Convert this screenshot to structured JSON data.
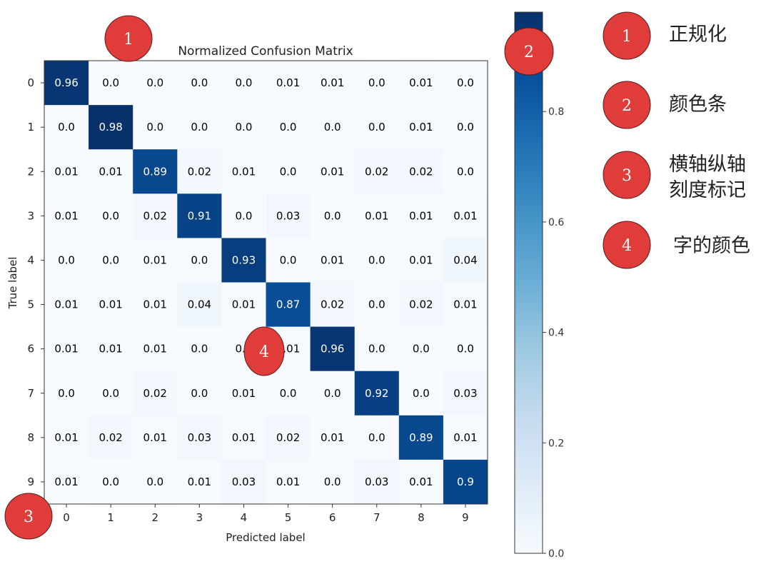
{
  "chart_data": {
    "type": "heatmap",
    "title": "Normalized Confusion Matrix",
    "xlabel": "Predicted label",
    "ylabel": "True label",
    "x_ticks": [
      "0",
      "1",
      "2",
      "3",
      "4",
      "5",
      "6",
      "7",
      "8",
      "9"
    ],
    "y_ticks": [
      "0",
      "1",
      "2",
      "3",
      "4",
      "5",
      "6",
      "7",
      "8",
      "9"
    ],
    "colormap": "Blues",
    "colorbar": {
      "range": [
        0.0,
        0.98
      ],
      "ticks": [
        "0.0",
        "0.2",
        "0.4",
        "0.6",
        "0.8"
      ]
    },
    "text_color_light": "#ffffff",
    "text_color_dark": "#000000",
    "matrix": [
      [
        "0.96",
        "0.0",
        "0.0",
        "0.0",
        "0.0",
        "0.01",
        "0.01",
        "0.0",
        "0.01",
        "0.0"
      ],
      [
        "0.0",
        "0.98",
        "0.0",
        "0.0",
        "0.0",
        "0.0",
        "0.0",
        "0.0",
        "0.01",
        "0.0"
      ],
      [
        "0.01",
        "0.01",
        "0.89",
        "0.02",
        "0.01",
        "0.0",
        "0.01",
        "0.02",
        "0.02",
        "0.0"
      ],
      [
        "0.01",
        "0.0",
        "0.02",
        "0.91",
        "0.0",
        "0.03",
        "0.0",
        "0.01",
        "0.01",
        "0.01"
      ],
      [
        "0.0",
        "0.0",
        "0.01",
        "0.0",
        "0.93",
        "0.0",
        "0.01",
        "0.0",
        "0.01",
        "0.04"
      ],
      [
        "0.01",
        "0.01",
        "0.01",
        "0.04",
        "0.01",
        "0.87",
        "0.02",
        "0.0",
        "0.02",
        "0.01"
      ],
      [
        "0.01",
        "0.01",
        "0.01",
        "0.0",
        "0.0",
        "0.01",
        "0.96",
        "0.0",
        "0.0",
        "0.0"
      ],
      [
        "0.0",
        "0.0",
        "0.02",
        "0.0",
        "0.01",
        "0.0",
        "0.0",
        "0.92",
        "0.0",
        "0.03"
      ],
      [
        "0.01",
        "0.02",
        "0.01",
        "0.03",
        "0.01",
        "0.02",
        "0.01",
        "0.0",
        "0.89",
        "0.01"
      ],
      [
        "0.01",
        "0.0",
        "0.0",
        "0.01",
        "0.03",
        "0.01",
        "0.0",
        "0.03",
        "0.01",
        "0.9"
      ]
    ]
  },
  "annotations": {
    "marker_color": "#e03c3a",
    "markers": [
      "1",
      "2",
      "3",
      "4"
    ],
    "legend": [
      {
        "number": "1",
        "text": "正规化"
      },
      {
        "number": "2",
        "text": "颜色条"
      },
      {
        "number": "3",
        "text_line1": "横轴纵轴",
        "text_line2": "刻度标记"
      },
      {
        "number": "4",
        "text": "字的颜色"
      }
    ]
  }
}
